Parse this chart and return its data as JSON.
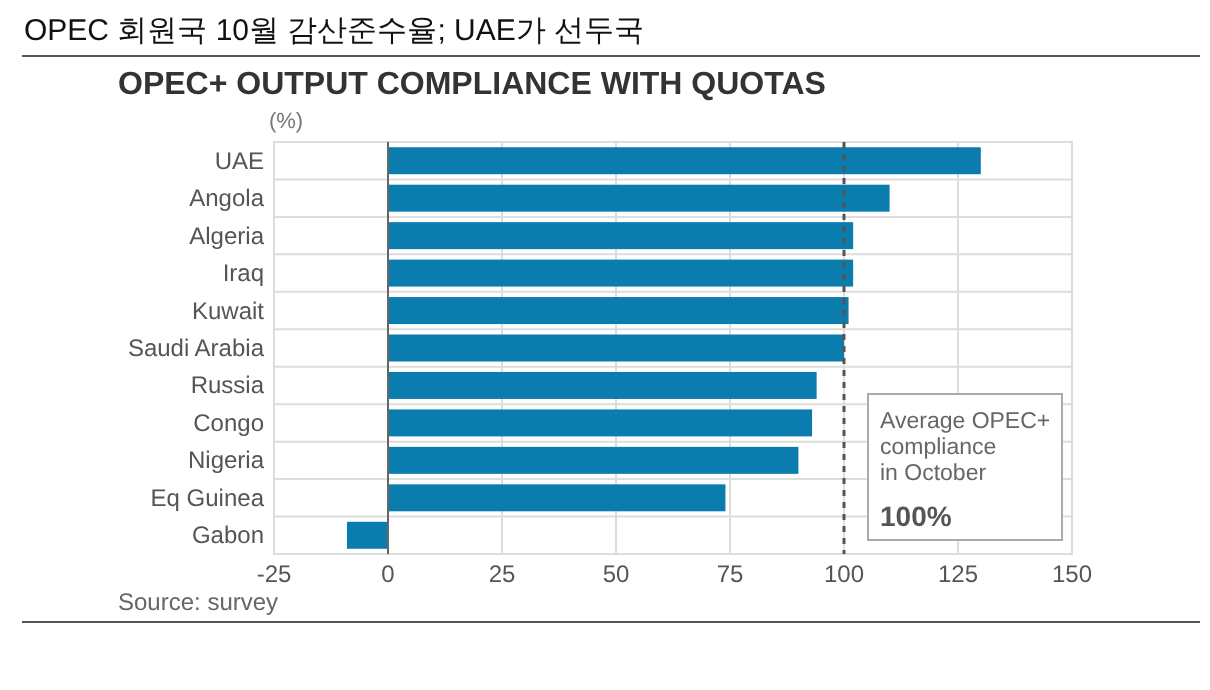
{
  "chart_data": {
    "type": "bar",
    "orientation": "horizontal",
    "title": "OPEC 회원국 10월 감산준수율; UAE가 선두국",
    "subtitle": "OPEC+ OUTPUT COMPLIANCE WITH QUOTAS",
    "xlabel": "(%)",
    "categories": [
      "UAE",
      "Angola",
      "Algeria",
      "Iraq",
      "Kuwait",
      "Saudi Arabia",
      "Russia",
      "Congo",
      "Nigeria",
      "Eq Guinea",
      "Gabon"
    ],
    "values": [
      130,
      110,
      102,
      102,
      101,
      100,
      94,
      93,
      90,
      74,
      -9
    ],
    "color": "#0a7cad",
    "xlim": [
      -25,
      150
    ],
    "xticks": [
      -25,
      0,
      25,
      50,
      75,
      100,
      125,
      150
    ],
    "grid": true,
    "ref_lines": [
      {
        "axis": "x",
        "value": 100,
        "label": "Average OPEC+ compliance in October",
        "line_style": "dashed",
        "color": "#555555"
      }
    ],
    "annotations": [
      "100%",
      "Source: survey"
    ]
  }
}
